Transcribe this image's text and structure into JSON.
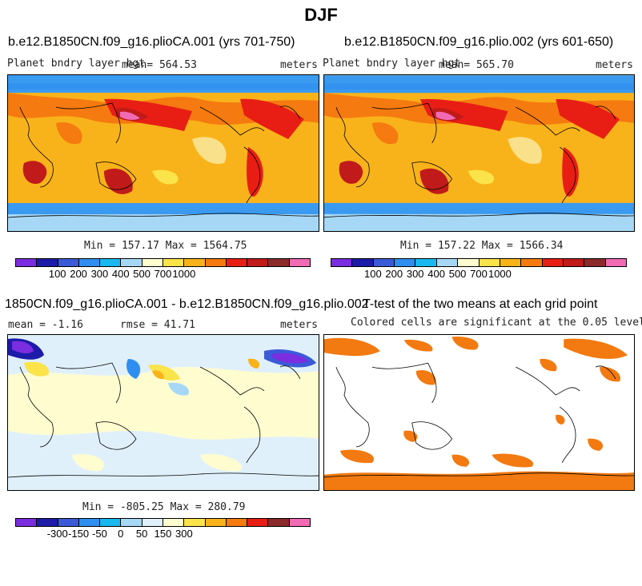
{
  "figure": {
    "title": "DJF"
  },
  "panels": [
    {
      "title": "b.e12.B1850CN.f09_g16.plioCA.001 (yrs 701-750)",
      "left_label": "Planet bndry layer hgt",
      "mean_label": "mean= 564.53",
      "units": "meters",
      "minmax": "Min = 157.17 Max = 1564.75",
      "colorbar_ticks": [
        "100",
        "200",
        "300",
        "400",
        "500",
        "700",
        "1000"
      ]
    },
    {
      "title": "b.e12.B1850CN.f09_g16.plio.002 (yrs 601-650)",
      "left_label": "Planet bndry layer hgt",
      "mean_label": "mean= 565.70",
      "units": "meters",
      "minmax": "Min = 157.22 Max = 1566.34",
      "colorbar_ticks": [
        "100",
        "200",
        "300",
        "400",
        "500",
        "700",
        "1000"
      ]
    },
    {
      "title": "1850CN.f09_g16.plioCA.001 - b.e12.B1850CN.f09_g16.plio.002",
      "mean_label": "mean =  -1.16",
      "rmse_label": "rmse =  41.71",
      "units": "meters",
      "minmax": "Min = -805.25 Max = 280.79",
      "colorbar_ticks": [
        "-300",
        "-150",
        "-50",
        "0",
        "50",
        "150",
        "300"
      ]
    },
    {
      "title": "T-test of the two means at each grid point",
      "subtitle": "Colored cells are significant at the 0.05 level"
    }
  ],
  "colors": {
    "seq_scale": [
      "#7b2de0",
      "#1c1ca8",
      "#3a5ad8",
      "#2f8ff0",
      "#19b8f0",
      "#a6d8f5",
      "#fffdd0",
      "#fbe34a",
      "#f9b31a",
      "#f57a0f",
      "#e81e14",
      "#c01a1a",
      "#8a2a2a",
      "#f06ab4"
    ],
    "div_scale": [
      "#7b2de0",
      "#1c1ca8",
      "#3a5ad8",
      "#2f8ff0",
      "#19b8f0",
      "#a6d8f5",
      "#e0f0fb",
      "#fffdd0",
      "#fbe34a",
      "#f9b31a",
      "#f57a0f",
      "#e81e14",
      "#8a2a2a",
      "#f06ab4"
    ],
    "significance": "#f27a10"
  }
}
